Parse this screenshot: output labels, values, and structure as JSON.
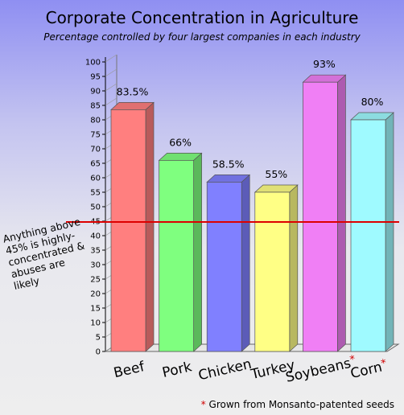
{
  "chart_data": {
    "type": "bar",
    "title": "Corporate Concentration in Agriculture",
    "subtitle": "Percentage controlled by four largest companies in each industry",
    "categories": [
      "Beef",
      "Pork",
      "Chicken",
      "Turkey",
      "Soybeans",
      "Corn"
    ],
    "category_markers": [
      "",
      "",
      "",
      "",
      "*",
      "*"
    ],
    "values": [
      83.5,
      66,
      58.5,
      55,
      93,
      80
    ],
    "value_labels": [
      "83.5%",
      "66%",
      "58.5%",
      "55%",
      "93%",
      "80%"
    ],
    "bar_colors": [
      "#ff7f7f",
      "#7fff7f",
      "#8080ff",
      "#ffff85",
      "#f07ff5",
      "#9ffaff"
    ],
    "ylim": [
      0,
      100
    ],
    "yticks": [
      0,
      5,
      10,
      15,
      20,
      25,
      30,
      35,
      40,
      45,
      50,
      55,
      60,
      65,
      70,
      75,
      80,
      85,
      90,
      95,
      100
    ],
    "threshold": {
      "value": 45,
      "color": "#dd0000",
      "note": "Anything above 45% is highly-concentrated & abuses are likely"
    },
    "footnote": {
      "marker": "*",
      "text": "Grown from Monsanto-patented seeds"
    },
    "grid": false
  }
}
